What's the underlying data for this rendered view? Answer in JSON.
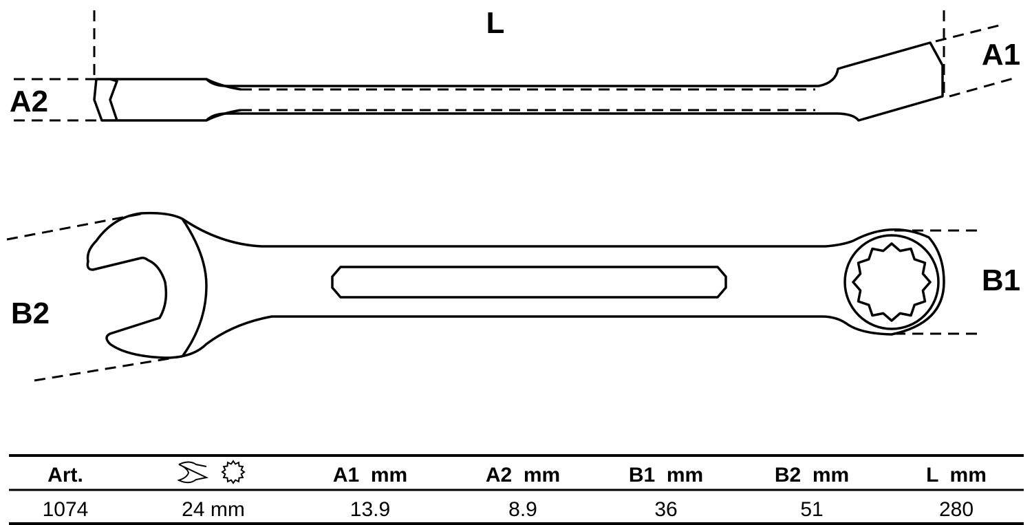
{
  "labels": {
    "L": "L",
    "A1": "A1",
    "A2": "A2",
    "B1": "B1",
    "B2": "B2"
  },
  "table": {
    "headers": [
      "Art.",
      "open-end-and-ring-icons",
      "A1  mm",
      "A2  mm",
      "B1  mm",
      "B2  mm",
      "L  mm"
    ],
    "row": [
      "1074",
      "24 mm",
      "13.9",
      "8.9",
      "36",
      "51",
      "280"
    ]
  }
}
